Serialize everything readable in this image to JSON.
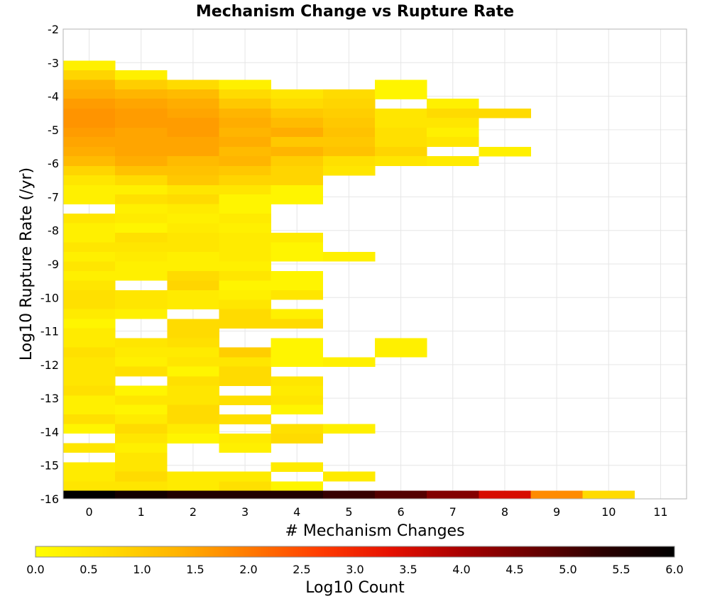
{
  "chart_data": {
    "type": "heatmap",
    "title": "Mechanism Change vs Rupture Rate",
    "xlabel": "# Mechanism Changes",
    "ylabel": "Log10 Rupture Rate (/yr)",
    "xlim": [
      -0.5,
      11.5
    ],
    "ylim": [
      -16,
      -2
    ],
    "x_ticks": [
      0,
      1,
      2,
      3,
      4,
      5,
      6,
      7,
      8,
      9,
      10,
      11
    ],
    "y_ticks": [
      -2,
      -3,
      -4,
      -5,
      -6,
      -7,
      -8,
      -9,
      -10,
      -11,
      -12,
      -13,
      -14,
      -15,
      -16
    ],
    "grid": true,
    "colorbar": {
      "label": "Log10 Count",
      "range": [
        0.0,
        6.0
      ],
      "ticks": [
        "0.0",
        "0.5",
        "1.0",
        "1.5",
        "2.0",
        "2.5",
        "3.0",
        "3.5",
        "4.0",
        "4.5",
        "5.0",
        "5.5",
        "6.0"
      ],
      "colormap": [
        "#ffff00",
        "#ffdd00",
        "#ffb300",
        "#ff7a00",
        "#ff3c00",
        "#e61000",
        "#a80000",
        "#6a0000",
        "#2a0000",
        "#000000"
      ]
    },
    "bin_width_y": 0.2846,
    "columns": [
      {
        "x": 0,
        "bins": [
          [
            -3.08,
            0.3
          ],
          [
            -3.37,
            0.8
          ],
          [
            -3.65,
            1.3
          ],
          [
            -3.94,
            1.4
          ],
          [
            -4.22,
            1.6
          ],
          [
            -4.51,
            1.7
          ],
          [
            -4.79,
            1.7
          ],
          [
            -5.08,
            1.6
          ],
          [
            -5.36,
            1.5
          ],
          [
            -5.65,
            1.4
          ],
          [
            -5.93,
            1.2
          ],
          [
            -6.22,
            0.8
          ],
          [
            -6.5,
            0.5
          ],
          [
            -6.79,
            0.3
          ],
          [
            -7.07,
            0.3
          ],
          [
            -7.64,
            0.5
          ],
          [
            -7.93,
            0.3
          ],
          [
            -8.21,
            0.3
          ],
          [
            -8.5,
            0.5
          ],
          [
            -8.78,
            0.3
          ],
          [
            -9.07,
            0.5
          ],
          [
            -9.35,
            0.3
          ],
          [
            -9.64,
            0.5
          ],
          [
            -9.92,
            0.6
          ],
          [
            -10.21,
            0.6
          ],
          [
            -10.49,
            0.4
          ],
          [
            -10.78,
            0.2
          ],
          [
            -11.06,
            0.4
          ],
          [
            -11.35,
            0.4
          ],
          [
            -11.63,
            0.6
          ],
          [
            -11.92,
            0.5
          ],
          [
            -12.2,
            0.5
          ],
          [
            -12.49,
            0.5
          ],
          [
            -12.77,
            0.6
          ],
          [
            -13.06,
            0.3
          ],
          [
            -13.34,
            0.3
          ],
          [
            -13.63,
            0.6
          ],
          [
            -13.91,
            0.2
          ],
          [
            -14.48,
            0.5
          ],
          [
            -15.05,
            0.4
          ],
          [
            -15.33,
            0.4
          ],
          [
            -15.62,
            0.5
          ],
          [
            -15.9,
            6.0
          ]
        ]
      },
      {
        "x": 1,
        "bins": [
          [
            -3.37,
            0.3
          ],
          [
            -3.65,
            0.9
          ],
          [
            -3.94,
            1.3
          ],
          [
            -4.22,
            1.5
          ],
          [
            -4.51,
            1.6
          ],
          [
            -4.79,
            1.6
          ],
          [
            -5.08,
            1.5
          ],
          [
            -5.36,
            1.5
          ],
          [
            -5.65,
            1.5
          ],
          [
            -5.93,
            1.4
          ],
          [
            -6.22,
            1.1
          ],
          [
            -6.5,
            0.7
          ],
          [
            -6.79,
            0.3
          ],
          [
            -7.07,
            0.6
          ],
          [
            -7.36,
            0.3
          ],
          [
            -7.64,
            0.4
          ],
          [
            -7.93,
            0.2
          ],
          [
            -8.21,
            0.6
          ],
          [
            -8.5,
            0.5
          ],
          [
            -8.78,
            0.4
          ],
          [
            -9.07,
            0.3
          ],
          [
            -9.35,
            0.3
          ],
          [
            -9.92,
            0.5
          ],
          [
            -10.21,
            0.5
          ],
          [
            -10.49,
            0.3
          ],
          [
            -11.35,
            0.5
          ],
          [
            -11.63,
            0.4
          ],
          [
            -11.92,
            0.3
          ],
          [
            -12.2,
            0.6
          ],
          [
            -12.77,
            0.2
          ],
          [
            -13.06,
            0.5
          ],
          [
            -13.34,
            0.2
          ],
          [
            -13.63,
            0.4
          ],
          [
            -13.91,
            0.7
          ],
          [
            -14.2,
            0.5
          ],
          [
            -14.48,
            0.3
          ],
          [
            -14.77,
            0.5
          ],
          [
            -15.05,
            0.5
          ],
          [
            -15.33,
            0.7
          ],
          [
            -15.62,
            0.5
          ],
          [
            -15.9,
            5.7
          ]
        ]
      },
      {
        "x": 2,
        "bins": [
          [
            -3.65,
            0.7
          ],
          [
            -3.94,
            1.2
          ],
          [
            -4.22,
            1.4
          ],
          [
            -4.51,
            1.5
          ],
          [
            -4.79,
            1.6
          ],
          [
            -5.08,
            1.6
          ],
          [
            -5.36,
            1.5
          ],
          [
            -5.65,
            1.5
          ],
          [
            -5.93,
            1.2
          ],
          [
            -6.22,
            1.1
          ],
          [
            -6.5,
            1.0
          ],
          [
            -6.79,
            0.5
          ],
          [
            -7.07,
            0.7
          ],
          [
            -7.36,
            0.4
          ],
          [
            -7.64,
            0.3
          ],
          [
            -7.93,
            0.4
          ],
          [
            -8.21,
            0.5
          ],
          [
            -8.5,
            0.5
          ],
          [
            -8.78,
            0.3
          ],
          [
            -9.07,
            0.3
          ],
          [
            -9.35,
            0.7
          ],
          [
            -9.64,
            0.8
          ],
          [
            -9.92,
            0.4
          ],
          [
            -10.21,
            0.4
          ],
          [
            -10.78,
            0.7
          ],
          [
            -11.06,
            0.7
          ],
          [
            -11.35,
            0.6
          ],
          [
            -11.63,
            0.4
          ],
          [
            -11.92,
            0.5
          ],
          [
            -12.2,
            0.2
          ],
          [
            -12.49,
            0.6
          ],
          [
            -12.77,
            0.5
          ],
          [
            -13.06,
            0.5
          ],
          [
            -13.34,
            0.7
          ],
          [
            -13.63,
            0.7
          ],
          [
            -13.91,
            0.4
          ],
          [
            -14.2,
            0.2
          ],
          [
            -15.33,
            0.4
          ],
          [
            -15.62,
            0.4
          ],
          [
            -15.9,
            5.5
          ]
        ]
      },
      {
        "x": 3,
        "bins": [
          [
            -3.65,
            0.3
          ],
          [
            -3.94,
            0.7
          ],
          [
            -4.22,
            1.0
          ],
          [
            -4.51,
            1.3
          ],
          [
            -4.79,
            1.4
          ],
          [
            -5.08,
            1.3
          ],
          [
            -5.36,
            1.4
          ],
          [
            -5.65,
            1.2
          ],
          [
            -5.93,
            1.3
          ],
          [
            -6.22,
            1.0
          ],
          [
            -6.5,
            0.8
          ],
          [
            -6.79,
            0.5
          ],
          [
            -7.07,
            0.2
          ],
          [
            -7.36,
            0.2
          ],
          [
            -7.64,
            0.4
          ],
          [
            -7.93,
            0.3
          ],
          [
            -8.21,
            0.4
          ],
          [
            -8.5,
            0.4
          ],
          [
            -8.78,
            0.4
          ],
          [
            -9.07,
            0.3
          ],
          [
            -9.35,
            0.5
          ],
          [
            -9.64,
            0.2
          ],
          [
            -9.92,
            0.3
          ],
          [
            -10.21,
            0.5
          ],
          [
            -10.49,
            0.7
          ],
          [
            -10.78,
            0.7
          ],
          [
            -11.63,
            0.9
          ],
          [
            -11.92,
            0.5
          ],
          [
            -12.2,
            0.7
          ],
          [
            -12.49,
            0.7
          ],
          [
            -13.06,
            0.6
          ],
          [
            -13.63,
            0.6
          ],
          [
            -14.2,
            0.4
          ],
          [
            -14.48,
            0.3
          ],
          [
            -15.33,
            0.4
          ],
          [
            -15.62,
            0.6
          ],
          [
            -15.9,
            5.5
          ]
        ]
      },
      {
        "x": 4,
        "bins": [
          [
            -3.94,
            0.5
          ],
          [
            -4.22,
            0.7
          ],
          [
            -4.51,
            1.0
          ],
          [
            -4.79,
            1.2
          ],
          [
            -5.08,
            1.4
          ],
          [
            -5.36,
            1.0
          ],
          [
            -5.65,
            1.3
          ],
          [
            -5.93,
            0.9
          ],
          [
            -6.22,
            0.8
          ],
          [
            -6.5,
            0.8
          ],
          [
            -6.79,
            0.2
          ],
          [
            -7.07,
            0.2
          ],
          [
            -8.21,
            0.4
          ],
          [
            -8.5,
            0.2
          ],
          [
            -8.78,
            0.2
          ],
          [
            -9.35,
            0.2
          ],
          [
            -9.64,
            0.2
          ],
          [
            -9.92,
            0.5
          ],
          [
            -10.49,
            0.3
          ],
          [
            -10.78,
            0.7
          ],
          [
            -11.35,
            0.2
          ],
          [
            -11.63,
            0.2
          ],
          [
            -11.92,
            0.2
          ],
          [
            -12.49,
            0.5
          ],
          [
            -12.77,
            0.4
          ],
          [
            -13.06,
            0.5
          ],
          [
            -13.34,
            0.2
          ],
          [
            -13.91,
            0.6
          ],
          [
            -14.2,
            0.7
          ],
          [
            -15.05,
            0.4
          ],
          [
            -15.62,
            0.2
          ],
          [
            -15.9,
            5.5
          ]
        ]
      },
      {
        "x": 5,
        "bins": [
          [
            -3.94,
            0.7
          ],
          [
            -4.22,
            0.8
          ],
          [
            -4.51,
            0.9
          ],
          [
            -4.79,
            1.0
          ],
          [
            -5.08,
            1.1
          ],
          [
            -5.36,
            1.0
          ],
          [
            -5.65,
            1.1
          ],
          [
            -5.93,
            0.6
          ],
          [
            -6.22,
            0.5
          ],
          [
            -8.78,
            0.3
          ],
          [
            -11.92,
            0.3
          ],
          [
            -13.91,
            0.3
          ],
          [
            -15.33,
            0.4
          ],
          [
            -15.9,
            5.2
          ]
        ]
      },
      {
        "x": 6,
        "bins": [
          [
            -3.65,
            0.2
          ],
          [
            -3.94,
            0.2
          ],
          [
            -4.51,
            0.5
          ],
          [
            -4.79,
            0.5
          ],
          [
            -5.08,
            0.6
          ],
          [
            -5.36,
            0.6
          ],
          [
            -5.65,
            0.8
          ],
          [
            -5.93,
            0.5
          ],
          [
            -11.35,
            0.3
          ],
          [
            -11.63,
            0.3
          ],
          [
            -15.9,
            4.9
          ]
        ]
      },
      {
        "x": 7,
        "bins": [
          [
            -4.22,
            0.3
          ],
          [
            -4.51,
            0.7
          ],
          [
            -4.79,
            0.5
          ],
          [
            -5.08,
            0.3
          ],
          [
            -5.36,
            0.5
          ],
          [
            -5.93,
            0.4
          ],
          [
            -15.9,
            4.4
          ]
        ]
      },
      {
        "x": 8,
        "bins": [
          [
            -4.51,
            0.7
          ],
          [
            -5.65,
            0.3
          ],
          [
            -15.9,
            3.5
          ]
        ]
      },
      {
        "x": 9,
        "bins": [
          [
            -15.9,
            1.8
          ]
        ]
      },
      {
        "x": 10,
        "bins": [
          [
            -15.9,
            0.7
          ]
        ]
      }
    ]
  }
}
